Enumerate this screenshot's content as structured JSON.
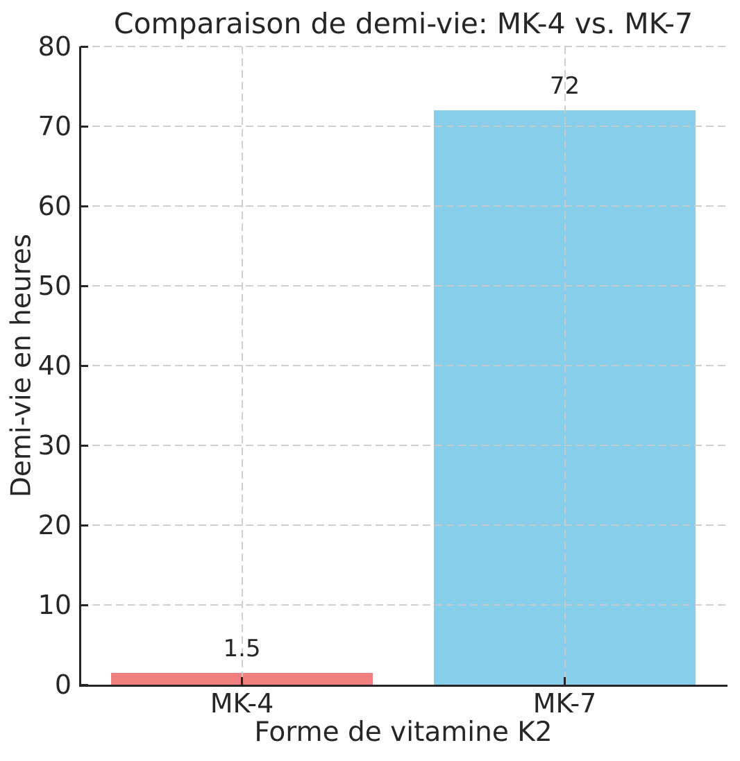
{
  "figure": {
    "background_color": "#ffffff",
    "text_color": "#262626",
    "spine_color": "#262626",
    "grid_color": "#cbcbcb"
  },
  "chart_data": {
    "type": "bar",
    "title": "Comparaison de demi-vie: MK-4 vs. MK-7",
    "xlabel": "Forme de vitamine K2",
    "ylabel": "Demi-vie en heures",
    "categories": [
      "MK-4",
      "MK-7"
    ],
    "values": [
      1.5,
      72
    ],
    "value_labels": [
      "1.5",
      "72"
    ],
    "bar_colors": [
      "#F08080",
      "#87CEEB"
    ],
    "ylim": [
      0,
      80
    ],
    "yticks": [
      0,
      10,
      20,
      30,
      40,
      50,
      60,
      70,
      80
    ],
    "bar_width_fraction": 0.81,
    "grid": "dashed gridlines on both axes, drawn over bars",
    "legend": "none"
  }
}
